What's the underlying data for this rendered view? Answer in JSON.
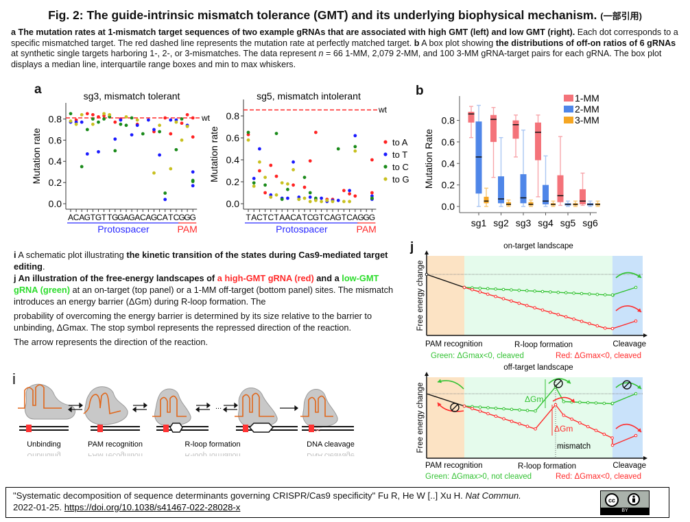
{
  "title": {
    "main": "Fig. 2: The guide-intrinsic mismatch tolerance (GMT) and its underlying biophysical mechanism.",
    "note": "(一部引用)"
  },
  "caption": {
    "a_bold": "a The mutation rates at 1-mismatch target sequences of two example gRNAs that are associated with high GMT (left) and low GMT (right).",
    "a_text": " Each dot corresponds to a specific mismatched target. The red dashed line represents the mutation rate at perfectly matched target. ",
    "b_label": "b",
    "b_text1": " A box plot showing ",
    "b_bold": "the distributions of off-on ratios of 6 gRNAs",
    "b_text2": " at synthetic single targets harboring 1-, 2-, or 3-mismatches. The data represent ",
    "b_n": "n",
    "b_text3": " = 66 1-MM, 2,079 2-MM, and 100 3-MM gRNA-target pairs for each gRNA. The box plot displays a median line, interquartile range boxes and min to max whiskers."
  },
  "panel_labels": {
    "a": "a",
    "b": "b",
    "i": "i",
    "j": "j"
  },
  "ij_text": {
    "i_label": "i",
    "i_text": " A schematic plot illustrating ",
    "i_bold": "the kinetic transition of the states during Cas9-mediated target editing",
    "i_end": ".",
    "j_bold": "j An illustration of the free-energy landscapes of ",
    "j_red": "a high-GMT gRNA (red)",
    "j_and": " and a ",
    "j_green": "low-GMT gRNA (green)",
    "j_text": " at an on-target (top panel) or a 1-MM off-target (bottom panel) sites. The mismatch introduces an energy barrier (ΔGm) during R-loop formation. The",
    "j_text2": "probability of overcoming the energy barrier is determined by its size relative to the barrier to unbinding, ΔGmax. The stop symbol represents the repressed direction of the reaction.",
    "j_text3": "The arrow represents the direction of the reaction."
  },
  "chart_data": [
    {
      "type": "scatter",
      "title": "sg3, mismatch tolerant",
      "ylabel": "Mutation rate",
      "ylim": [
        0,
        0.9
      ],
      "yticks": [
        "0.0",
        "0.2",
        "0.4",
        "0.6",
        "0.8"
      ],
      "wt": 0.81,
      "wt_label": "wt",
      "sequence": "ACAGTGTTGGAGACAGCATCGGG",
      "protospacer_label": "Protospacer",
      "pam_label": "PAM",
      "series": [
        {
          "name": "to A",
          "color": "#ff2222",
          "points": [
            [
              2,
              0.79
            ],
            [
              4,
              0.85
            ],
            [
              5,
              0.84
            ],
            [
              6,
              0.82
            ],
            [
              7,
              0.83
            ],
            [
              9,
              0.77
            ],
            [
              10,
              0.8
            ],
            [
              13,
              0.75
            ],
            [
              16,
              0.68
            ],
            [
              18,
              0.81
            ],
            [
              19,
              0.66
            ],
            [
              21,
              0.76
            ],
            [
              22,
              0.84
            ],
            [
              24,
              0.81
            ],
            [
              25,
              0.63
            ]
          ]
        },
        {
          "name": "to T",
          "color": "#1a1aff",
          "points": [
            [
              1,
              0.77
            ],
            [
              2,
              0.77
            ],
            [
              3,
              0.77
            ],
            [
              4,
              0.47
            ],
            [
              6,
              0.49
            ],
            [
              9,
              0.61
            ],
            [
              10,
              0.79
            ],
            [
              12,
              0.65
            ],
            [
              13,
              0.74
            ],
            [
              15,
              0.79
            ],
            [
              16,
              0.7
            ],
            [
              17,
              0.46
            ],
            [
              18,
              0.04
            ],
            [
              19,
              0.79
            ],
            [
              20,
              0.79
            ],
            [
              22,
              0.74
            ],
            [
              24,
              0.3
            ],
            [
              25,
              0.17
            ]
          ]
        },
        {
          "name": "to C",
          "color": "#1a8a1a",
          "points": [
            [
              1,
              0.85
            ],
            [
              3,
              0.35
            ],
            [
              4,
              0.7
            ],
            [
              5,
              0.8
            ],
            [
              6,
              0.77
            ],
            [
              7,
              0.8
            ],
            [
              8,
              0.82
            ],
            [
              9,
              0.5
            ],
            [
              10,
              0.75
            ],
            [
              11,
              0.74
            ],
            [
              12,
              0.81
            ],
            [
              14,
              0.66
            ],
            [
              17,
              0.68
            ],
            [
              18,
              0.1
            ],
            [
              20,
              0.51
            ],
            [
              21,
              0.8
            ],
            [
              24,
              0.22
            ],
            [
              25,
              0.21
            ]
          ]
        },
        {
          "name": "to G",
          "color": "#c8c020",
          "points": [
            [
              1,
              0.78
            ],
            [
              2,
              0.75
            ],
            [
              3,
              0.84
            ],
            [
              5,
              0.75
            ],
            [
              7,
              0.85
            ],
            [
              8,
              0.84
            ],
            [
              11,
              0.82
            ],
            [
              13,
              0.79
            ],
            [
              16,
              0.29
            ],
            [
              17,
              0.74
            ],
            [
              19,
              0.33
            ],
            [
              20,
              0.77
            ],
            [
              21,
              0.6
            ],
            [
              22,
              0.73
            ]
          ]
        }
      ]
    },
    {
      "type": "scatter",
      "title": "sg5, mismatch intolerant",
      "ylabel": "Mutation rate",
      "ylim": [
        0,
        0.9
      ],
      "yticks": [
        "0.0",
        "0.2",
        "0.4",
        "0.6",
        "0.8"
      ],
      "wt": 0.855,
      "wt_label": "wt",
      "sequence": "TACTCTAACATCGTCAGTCAGGG",
      "protospacer_label": "Protospacer",
      "pam_label": "PAM",
      "legend": [
        "to A",
        "to T",
        "to C",
        "to G"
      ],
      "series": [
        {
          "name": "to A",
          "color": "#ff2222",
          "points": [
            [
              1,
              0.63
            ],
            [
              3,
              0.3
            ],
            [
              4,
              0.1
            ],
            [
              5,
              0.35
            ],
            [
              6,
              0.25
            ],
            [
              9,
              0.17
            ],
            [
              11,
              0.15
            ],
            [
              12,
              0.39
            ],
            [
              13,
              0.65
            ],
            [
              15,
              0.04
            ],
            [
              16,
              0.04
            ],
            [
              18,
              0.12
            ],
            [
              19,
              0.09
            ],
            [
              20,
              0.07
            ],
            [
              23,
              0.4
            ],
            [
              24,
              0.1
            ]
          ]
        },
        {
          "name": "to T",
          "color": "#1a1aff",
          "points": [
            [
              2,
              0.23
            ],
            [
              3,
              0.5
            ],
            [
              5,
              0.08
            ],
            [
              7,
              0.05
            ],
            [
              8,
              0.05
            ],
            [
              9,
              0.38
            ],
            [
              10,
              0.06
            ],
            [
              12,
              0.06
            ],
            [
              13,
              0.04
            ],
            [
              14,
              0.05
            ],
            [
              15,
              0.02
            ],
            [
              16,
              0.03
            ],
            [
              17,
              0.03
            ],
            [
              19,
              0.12
            ],
            [
              20,
              0.62
            ],
            [
              23,
              0.07
            ],
            [
              24,
              0.04
            ]
          ]
        },
        {
          "name": "to C",
          "color": "#1a8a1a",
          "points": [
            [
              1,
              0.65
            ],
            [
              2,
              0.19
            ],
            [
              4,
              0.17
            ],
            [
              6,
              0.64
            ],
            [
              7,
              0.04
            ],
            [
              8,
              0.13
            ],
            [
              10,
              0.04
            ],
            [
              11,
              0.24
            ],
            [
              12,
              0.1
            ],
            [
              13,
              0.05
            ],
            [
              17,
              0.5
            ],
            [
              20,
              0.52
            ],
            [
              23,
              0.05
            ],
            [
              24,
              0.05
            ]
          ]
        },
        {
          "name": "to G",
          "color": "#c8c020",
          "points": [
            [
              1,
              0.58
            ],
            [
              2,
              0.16
            ],
            [
              3,
              0.38
            ],
            [
              4,
              0.24
            ],
            [
              5,
              0.06
            ],
            [
              6,
              0.08
            ],
            [
              7,
              0.19
            ],
            [
              8,
              0.18
            ],
            [
              9,
              0.31
            ],
            [
              10,
              0.04
            ],
            [
              11,
              0.05
            ],
            [
              12,
              0.02
            ],
            [
              13,
              0.03
            ],
            [
              14,
              0.02
            ],
            [
              15,
              0.03
            ],
            [
              16,
              0.02
            ],
            [
              18,
              0.02
            ],
            [
              19,
              0.02
            ],
            [
              20,
              0.48
            ]
          ]
        }
      ]
    },
    {
      "type": "box",
      "ylabel": "Mutation Rate",
      "ylim": [
        0,
        0.95
      ],
      "yticks": [
        "0.0",
        "0.2",
        "0.4",
        "0.6",
        "0.8"
      ],
      "categories": [
        "sg1",
        "sg2",
        "sg3",
        "sg4",
        "sg5",
        "sg6"
      ],
      "series": [
        {
          "name": "1-MM",
          "color": "#f4737a",
          "whisker": "#f7a5aa",
          "boxes": [
            [
              0.64,
              0.78,
              0.86,
              0.88,
              0.93
            ],
            [
              0.27,
              0.6,
              0.81,
              0.85,
              0.92
            ],
            [
              0.46,
              0.63,
              0.76,
              0.8,
              0.85
            ],
            [
              0.09,
              0.43,
              0.69,
              0.78,
              0.85
            ],
            [
              0.01,
              0.04,
              0.1,
              0.29,
              0.65
            ],
            [
              0.01,
              0.02,
              0.05,
              0.16,
              0.31
            ]
          ]
        },
        {
          "name": "2-MM",
          "color": "#4f86e8",
          "whisker": "#a9c6f3",
          "boxes": [
            [
              0.0,
              0.12,
              0.46,
              0.79,
              0.94
            ],
            [
              0.0,
              0.03,
              0.07,
              0.28,
              0.64
            ],
            [
              0.0,
              0.03,
              0.08,
              0.3,
              0.71
            ],
            [
              0.0,
              0.02,
              0.05,
              0.2,
              0.47
            ],
            [
              0.0,
              0.01,
              0.02,
              0.03,
              0.05
            ],
            [
              0.0,
              0.01,
              0.02,
              0.03,
              0.05
            ]
          ]
        },
        {
          "name": "3-MM",
          "color": "#f5a623",
          "whisker": "#f8c875",
          "boxes": [
            [
              0.0,
              0.03,
              0.05,
              0.09,
              0.17
            ],
            [
              0.0,
              0.01,
              0.02,
              0.04,
              0.06
            ],
            [
              0.0,
              0.01,
              0.02,
              0.04,
              0.06
            ],
            [
              0.0,
              0.01,
              0.02,
              0.03,
              0.05
            ],
            [
              0.0,
              0.01,
              0.02,
              0.03,
              0.05
            ],
            [
              0.0,
              0.01,
              0.02,
              0.03,
              0.05
            ]
          ]
        }
      ]
    }
  ],
  "panel_i": {
    "labels": [
      "Unbinding",
      "PAM recognition",
      "R-loop formation",
      "DNA cleavage"
    ],
    "ellipsis": "..."
  },
  "panel_j": {
    "top_title": "on-target landscape",
    "bottom_title": "off-target landscape",
    "ylabel": "Free energy change",
    "x_labels": [
      "PAM recognition",
      "R-loop formation",
      "Cleavage"
    ],
    "top_green_note": "Green: ΔGmax<0, cleaved",
    "top_red_note": "Red: ΔGmax<0, cleaved",
    "bottom_green_note": "Green: ΔGmax>0, not cleaved",
    "bottom_red_note": "Red: ΔGmax<0, cleaved",
    "dgm_label": "ΔGm",
    "mismatch_label": "mismatch",
    "colors": {
      "green": "#33c233",
      "red": "#ff2a2a",
      "pam_bg": "#fce3c4",
      "rloop_bg": "#e5fbec",
      "cleave_bg": "#c9e2fa"
    }
  },
  "citation": {
    "text": "\"Systematic decomposition of sequence determinants governing CRISPR/Cas9 specificity\" Fu R, He W [..] Xu H. ",
    "journal": "Nat Commun.",
    "date": "2022-01-25. ",
    "doi": "https://doi.org/10.1038/s41467-022-28028-x",
    "license": "BY",
    "cc": "cc"
  }
}
